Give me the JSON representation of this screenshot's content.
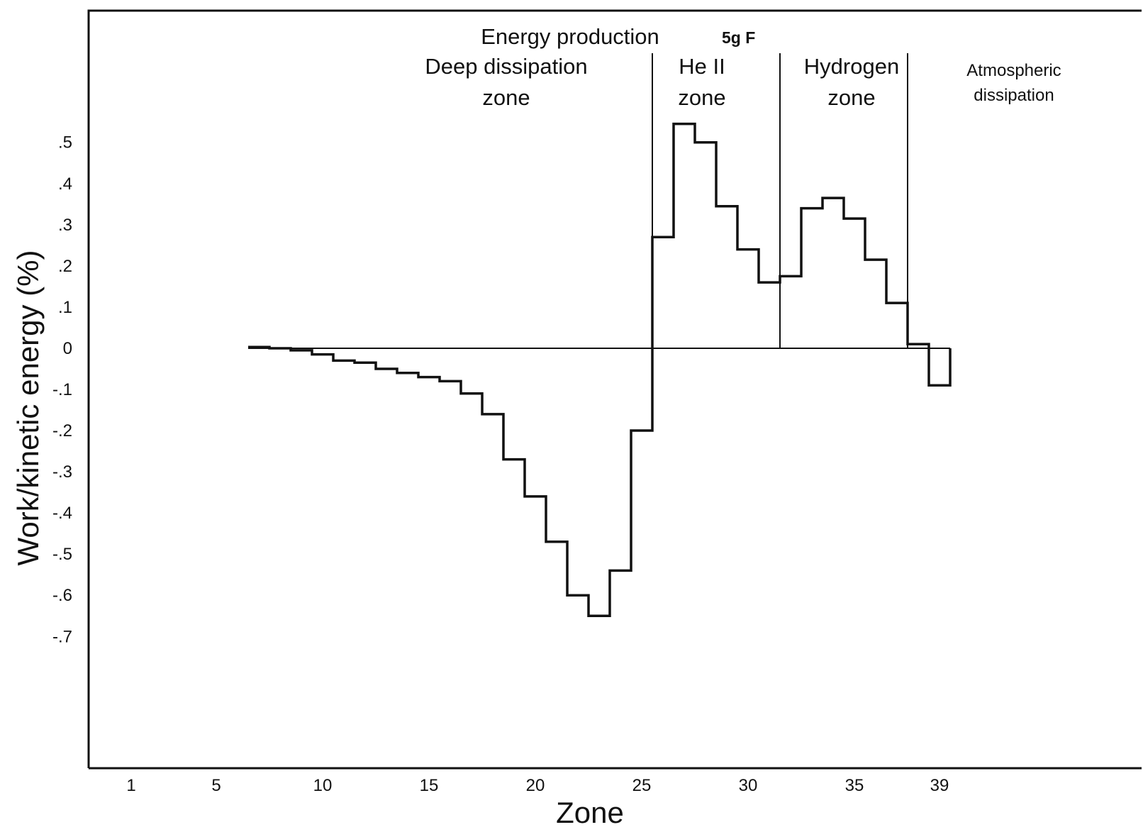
{
  "chart_data": {
    "type": "line",
    "title": "",
    "xlabel": "Zone",
    "ylabel": "Work/kinetic energy (%)",
    "x_tick_labels": [
      "1",
      "5",
      "10",
      "15",
      "20",
      "25",
      "30",
      "35",
      "39"
    ],
    "x_tick_values": [
      1,
      5,
      10,
      15,
      20,
      25,
      30,
      35,
      39
    ],
    "y_tick_labels": [
      ".5",
      ".4",
      ".3",
      ".2",
      ".1",
      "0",
      "-.1",
      "-.2",
      "-.3",
      "-.4",
      "-.5",
      "-.6",
      "-.7"
    ],
    "y_tick_values": [
      0.5,
      0.4,
      0.3,
      0.2,
      0.1,
      0,
      -0.1,
      -0.2,
      -0.3,
      -0.4,
      -0.5,
      -0.6,
      -0.7
    ],
    "xlim": [
      -1,
      48.5
    ],
    "ylim": [
      -1.02,
      0.82
    ],
    "grid": false,
    "step_series": {
      "zones": [
        7,
        8,
        9,
        10,
        11,
        12,
        13,
        14,
        15,
        16,
        17,
        18,
        19,
        20,
        21,
        22,
        23,
        24,
        25,
        26,
        27,
        28,
        29,
        30,
        31,
        32,
        33,
        34,
        35,
        36,
        37,
        38,
        39
      ],
      "values": [
        0.003,
        0.0,
        -0.005,
        -0.015,
        -0.03,
        -0.035,
        -0.05,
        -0.06,
        -0.07,
        -0.08,
        -0.11,
        -0.16,
        -0.27,
        -0.36,
        -0.47,
        -0.6,
        -0.65,
        -0.54,
        -0.2,
        0.27,
        0.545,
        0.5,
        0.345,
        0.24,
        0.16,
        0.175,
        0.34,
        0.365,
        0.315,
        0.215,
        0.11,
        0.01,
        -0.09
      ]
    },
    "zone_boundaries": [
      25.5,
      31.5,
      37.5
    ],
    "zeroline_range": [
      6.5,
      39.5
    ],
    "annotations": {
      "energy_production": "Energy production",
      "energy_production_tag": "5g F",
      "deep_line1": "Deep dissipation",
      "deep_line2": "zone",
      "he_line1": "He II",
      "he_line2": "zone",
      "hydrogen_line1": "Hydrogen",
      "hydrogen_line2": "zone",
      "atmos_line1": "Atmospheric",
      "atmos_line2": "dissipation"
    }
  }
}
